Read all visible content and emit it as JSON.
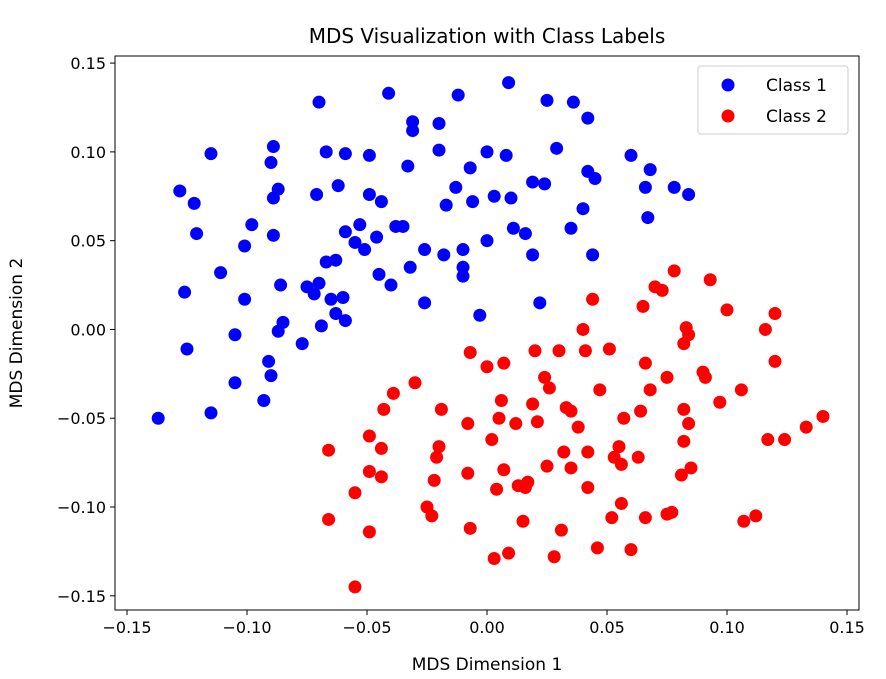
{
  "chart_data": {
    "type": "scatter",
    "title": "MDS Visualization with Class Labels",
    "xlabel": "MDS Dimension 1",
    "ylabel": "MDS Dimension 2",
    "xlim": [
      -0.155,
      0.155
    ],
    "ylim": [
      -0.158,
      0.154
    ],
    "xticks": [
      -0.15,
      -0.1,
      -0.05,
      0.0,
      0.05,
      0.1,
      0.15
    ],
    "xtick_labels": [
      "−0.15",
      "−0.10",
      "−0.05",
      "0.00",
      "0.05",
      "0.10",
      "0.15"
    ],
    "yticks": [
      -0.15,
      -0.1,
      -0.05,
      0.0,
      0.05,
      0.1,
      0.15
    ],
    "ytick_labels": [
      "−0.15",
      "−0.10",
      "−0.05",
      "0.00",
      "0.05",
      "0.10",
      "0.15"
    ],
    "grid": false,
    "legend_position": "top-right",
    "series": [
      {
        "name": "Class 1",
        "color": "#0000ff",
        "points": [
          [
            -0.137,
            -0.05
          ],
          [
            -0.128,
            0.078
          ],
          [
            -0.126,
            0.021
          ],
          [
            -0.125,
            -0.011
          ],
          [
            -0.122,
            0.071
          ],
          [
            -0.121,
            0.054
          ],
          [
            -0.115,
            0.099
          ],
          [
            -0.115,
            -0.047
          ],
          [
            -0.111,
            0.032
          ],
          [
            -0.105,
            -0.003
          ],
          [
            -0.105,
            -0.03
          ],
          [
            -0.101,
            0.047
          ],
          [
            -0.101,
            0.017
          ],
          [
            -0.098,
            0.059
          ],
          [
            -0.093,
            -0.04
          ],
          [
            -0.091,
            -0.018
          ],
          [
            -0.09,
            0.094
          ],
          [
            -0.089,
            0.103
          ],
          [
            -0.089,
            0.074
          ],
          [
            -0.09,
            -0.026
          ],
          [
            -0.089,
            0.053
          ],
          [
            -0.087,
            0.079
          ],
          [
            -0.087,
            -0.001
          ],
          [
            -0.086,
            0.025
          ],
          [
            -0.085,
            0.004
          ],
          [
            -0.077,
            -0.008
          ],
          [
            -0.075,
            0.024
          ],
          [
            -0.072,
            0.02
          ],
          [
            -0.071,
            0.076
          ],
          [
            -0.07,
            0.026
          ],
          [
            -0.07,
            0.128
          ],
          [
            -0.069,
            0.002
          ],
          [
            -0.067,
            0.038
          ],
          [
            -0.067,
            0.1
          ],
          [
            -0.065,
            0.017
          ],
          [
            -0.063,
            0.039
          ],
          [
            -0.063,
            0.009
          ],
          [
            -0.062,
            0.081
          ],
          [
            -0.06,
            0.018
          ],
          [
            -0.059,
            0.055
          ],
          [
            -0.059,
            0.005
          ],
          [
            -0.059,
            0.099
          ],
          [
            -0.055,
            0.049
          ],
          [
            -0.053,
            0.059
          ],
          [
            -0.051,
            0.045
          ],
          [
            -0.049,
            0.098
          ],
          [
            -0.049,
            0.076
          ],
          [
            -0.046,
            0.052
          ],
          [
            -0.045,
            0.031
          ],
          [
            -0.044,
            0.072
          ],
          [
            -0.041,
            0.133
          ],
          [
            -0.04,
            0.025
          ],
          [
            -0.038,
            0.058
          ],
          [
            -0.035,
            0.058
          ],
          [
            -0.033,
            0.092
          ],
          [
            -0.032,
            0.035
          ],
          [
            -0.031,
            0.112
          ],
          [
            -0.031,
            0.117
          ],
          [
            -0.026,
            0.045
          ],
          [
            -0.026,
            0.015
          ],
          [
            -0.02,
            0.116
          ],
          [
            -0.02,
            0.101
          ],
          [
            -0.018,
            0.042
          ],
          [
            -0.017,
            0.07
          ],
          [
            -0.013,
            0.08
          ],
          [
            -0.012,
            0.132
          ],
          [
            -0.01,
            0.045
          ],
          [
            -0.01,
            0.03
          ],
          [
            -0.01,
            0.035
          ],
          [
            -0.007,
            0.091
          ],
          [
            -0.006,
            0.072
          ],
          [
            -0.003,
            0.008
          ],
          [
            0.0,
            0.05
          ],
          [
            0.0,
            0.1
          ],
          [
            0.003,
            0.075
          ],
          [
            0.008,
            0.098
          ],
          [
            0.009,
            0.139
          ],
          [
            0.01,
            0.074
          ],
          [
            0.011,
            0.057
          ],
          [
            0.016,
            0.054
          ],
          [
            0.019,
            0.083
          ],
          [
            0.019,
            0.042
          ],
          [
            0.022,
            0.015
          ],
          [
            0.024,
            0.082
          ],
          [
            0.025,
            0.129
          ],
          [
            0.029,
            0.102
          ],
          [
            0.035,
            0.057
          ],
          [
            0.036,
            0.128
          ],
          [
            0.04,
            0.068
          ],
          [
            0.042,
            0.119
          ],
          [
            0.042,
            0.089
          ],
          [
            0.044,
            0.042
          ],
          [
            0.045,
            0.085
          ],
          [
            0.06,
            0.098
          ],
          [
            0.066,
            0.08
          ],
          [
            0.067,
            0.063
          ],
          [
            0.068,
            0.09
          ],
          [
            0.078,
            0.08
          ],
          [
            0.084,
            0.076
          ]
        ]
      },
      {
        "name": "Class 2",
        "color": "#ff0000",
        "points": [
          [
            -0.066,
            -0.068
          ],
          [
            -0.066,
            -0.107
          ],
          [
            -0.055,
            -0.092
          ],
          [
            -0.055,
            -0.145
          ],
          [
            -0.049,
            -0.06
          ],
          [
            -0.049,
            -0.08
          ],
          [
            -0.049,
            -0.114
          ],
          [
            -0.044,
            -0.067
          ],
          [
            -0.044,
            -0.083
          ],
          [
            -0.043,
            -0.045
          ],
          [
            -0.039,
            -0.036
          ],
          [
            -0.03,
            -0.03
          ],
          [
            -0.025,
            -0.1
          ],
          [
            -0.023,
            -0.105
          ],
          [
            -0.022,
            -0.085
          ],
          [
            -0.021,
            -0.072
          ],
          [
            -0.02,
            -0.066
          ],
          [
            -0.019,
            -0.045
          ],
          [
            -0.008,
            -0.053
          ],
          [
            -0.008,
            -0.081
          ],
          [
            -0.007,
            -0.013
          ],
          [
            -0.007,
            -0.112
          ],
          [
            0.0,
            -0.021
          ],
          [
            0.002,
            -0.062
          ],
          [
            0.003,
            -0.129
          ],
          [
            0.004,
            -0.09
          ],
          [
            0.005,
            -0.05
          ],
          [
            0.006,
            -0.04
          ],
          [
            0.007,
            -0.019
          ],
          [
            0.007,
            -0.079
          ],
          [
            0.009,
            -0.126
          ],
          [
            0.012,
            -0.053
          ],
          [
            0.013,
            -0.088
          ],
          [
            0.015,
            -0.108
          ],
          [
            0.016,
            -0.089
          ],
          [
            0.017,
            -0.086
          ],
          [
            0.019,
            -0.042
          ],
          [
            0.02,
            -0.012
          ],
          [
            0.021,
            -0.052
          ],
          [
            0.024,
            -0.027
          ],
          [
            0.025,
            -0.077
          ],
          [
            0.026,
            -0.033
          ],
          [
            0.028,
            -0.128
          ],
          [
            0.03,
            -0.012
          ],
          [
            0.031,
            -0.113
          ],
          [
            0.032,
            -0.069
          ],
          [
            0.033,
            -0.044
          ],
          [
            0.035,
            -0.078
          ],
          [
            0.035,
            -0.046
          ],
          [
            0.038,
            -0.055
          ],
          [
            0.04,
            0.0
          ],
          [
            0.041,
            -0.012
          ],
          [
            0.042,
            -0.069
          ],
          [
            0.042,
            -0.089
          ],
          [
            0.044,
            0.017
          ],
          [
            0.046,
            -0.123
          ],
          [
            0.047,
            -0.034
          ],
          [
            0.051,
            -0.011
          ],
          [
            0.052,
            -0.106
          ],
          [
            0.053,
            -0.072
          ],
          [
            0.055,
            -0.066
          ],
          [
            0.056,
            -0.076
          ],
          [
            0.056,
            -0.098
          ],
          [
            0.057,
            -0.05
          ],
          [
            0.06,
            -0.124
          ],
          [
            0.063,
            -0.072
          ],
          [
            0.064,
            -0.046
          ],
          [
            0.065,
            0.013
          ],
          [
            0.066,
            -0.106
          ],
          [
            0.066,
            -0.019
          ],
          [
            0.068,
            -0.034
          ],
          [
            0.07,
            0.024
          ],
          [
            0.073,
            0.022
          ],
          [
            0.075,
            -0.104
          ],
          [
            0.075,
            -0.027
          ],
          [
            0.077,
            -0.103
          ],
          [
            0.078,
            0.033
          ],
          [
            0.081,
            -0.082
          ],
          [
            0.082,
            -0.008
          ],
          [
            0.082,
            -0.063
          ],
          [
            0.082,
            -0.045
          ],
          [
            0.083,
            0.001
          ],
          [
            0.084,
            -0.003
          ],
          [
            0.084,
            -0.053
          ],
          [
            0.085,
            -0.078
          ],
          [
            0.09,
            -0.024
          ],
          [
            0.091,
            -0.027
          ],
          [
            0.093,
            0.028
          ],
          [
            0.097,
            -0.041
          ],
          [
            0.1,
            0.011
          ],
          [
            0.106,
            -0.034
          ],
          [
            0.107,
            -0.108
          ],
          [
            0.112,
            -0.105
          ],
          [
            0.116,
            0.0
          ],
          [
            0.117,
            -0.062
          ],
          [
            0.12,
            0.009
          ],
          [
            0.12,
            -0.018
          ],
          [
            0.124,
            -0.062
          ],
          [
            0.133,
            -0.055
          ],
          [
            0.14,
            -0.049
          ]
        ]
      }
    ]
  }
}
